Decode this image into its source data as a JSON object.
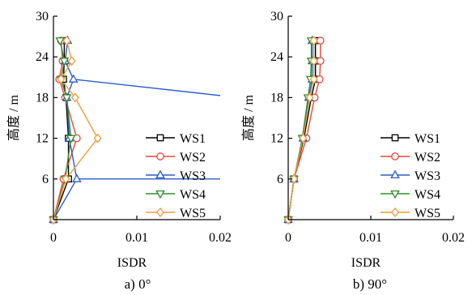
{
  "chart_data": [
    {
      "type": "line",
      "caption": "a) 0°",
      "xlabel": "ISDR",
      "ylabel": "高度 / m",
      "xlim": [
        0,
        0.02
      ],
      "ylim": [
        0,
        30
      ],
      "xticks": [
        "0",
        "0.01",
        "0.02"
      ],
      "yticks": [
        "6",
        "12",
        "18",
        "24",
        "30"
      ],
      "legend_position": "right",
      "y": [
        0,
        6,
        12,
        18,
        20.7,
        23.4,
        26.4
      ],
      "series": [
        {
          "name": "WS1",
          "color": "#000000",
          "marker": "square",
          "values": [
            0,
            0.0018,
            0.0018,
            0.0015,
            0.0012,
            0.0013,
            0.0013
          ]
        },
        {
          "name": "WS2",
          "color": "#e8473a",
          "marker": "circle",
          "values": [
            0,
            0.0012,
            0.0028,
            0.0014,
            0.0007,
            0.0011,
            0.0009
          ]
        },
        {
          "name": "WS3",
          "color": "#2a5ec4",
          "marker": "triangle-up",
          "values": [
            0,
            0.0028,
            0.0019,
            0.0016,
            0.0024,
            0.0014,
            0.0017
          ]
        },
        {
          "name": "WS4",
          "color": "#2f8f2f",
          "marker": "triangle-down",
          "values": [
            0,
            0.0014,
            0.0021,
            0.0016,
            0.0009,
            0.0013,
            0.0008
          ]
        },
        {
          "name": "WS5",
          "color": "#f39a3c",
          "marker": "diamond",
          "values": [
            0,
            0.0015,
            0.0053,
            0.0026,
            0.0009,
            0.0022,
            0.0016
          ]
        }
      ],
      "extra_lines": [
        {
          "series": "WS3",
          "from": [
            0.0028,
            6.0
          ],
          "to": [
            0.02,
            6.0
          ]
        },
        {
          "series": "WS3",
          "from": [
            0.0024,
            20.7
          ],
          "to": [
            0.02,
            18.3
          ]
        }
      ]
    },
    {
      "type": "line",
      "caption": "b) 90°",
      "xlabel": "ISDR",
      "ylabel": "高度 / m",
      "xlim": [
        0,
        0.02
      ],
      "ylim": [
        0,
        30
      ],
      "xticks": [
        "0",
        "0.01",
        "0.02"
      ],
      "yticks": [
        "6",
        "12",
        "18",
        "24",
        "30"
      ],
      "legend_position": "right",
      "y": [
        0,
        6,
        12,
        18,
        20.7,
        23.4,
        26.4
      ],
      "series": [
        {
          "name": "WS1",
          "color": "#000000",
          "marker": "square",
          "values": [
            0,
            0.0007,
            0.0019,
            0.0028,
            0.0033,
            0.0033,
            0.0033
          ]
        },
        {
          "name": "WS2",
          "color": "#e8473a",
          "marker": "circle",
          "values": [
            0,
            0.0007,
            0.0022,
            0.0032,
            0.0038,
            0.0039,
            0.0039
          ]
        },
        {
          "name": "WS3",
          "color": "#2a5ec4",
          "marker": "triangle-up",
          "values": [
            0,
            0.0007,
            0.0018,
            0.0025,
            0.0029,
            0.0029,
            0.0029
          ]
        },
        {
          "name": "WS4",
          "color": "#2f8f2f",
          "marker": "triangle-down",
          "values": [
            0,
            0.0007,
            0.0017,
            0.0024,
            0.0027,
            0.0028,
            0.0028
          ]
        },
        {
          "name": "WS5",
          "color": "#f39a3c",
          "marker": "diamond",
          "values": [
            0,
            0.0007,
            0.0018,
            0.0026,
            0.0031,
            0.0031,
            0.0031
          ]
        }
      ],
      "extra_lines": []
    }
  ]
}
